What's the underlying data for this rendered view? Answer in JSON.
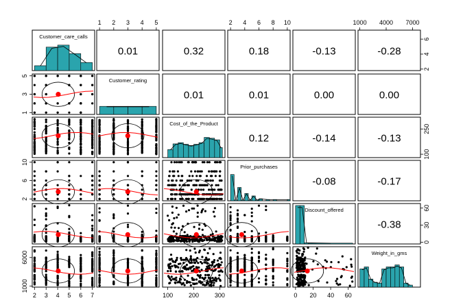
{
  "chart_data": {
    "type": "scatter",
    "matrix_kind": "pairs-panels",
    "variables": [
      "Customer_care_calls",
      "Customer_rating",
      "Cost_of_the_Product",
      "Prior_purchases",
      "Discount_offered",
      "Weight_in_gms"
    ],
    "correlations": [
      {
        "row": 0,
        "col": 1,
        "value": "0.01"
      },
      {
        "row": 0,
        "col": 2,
        "value": "0.32"
      },
      {
        "row": 0,
        "col": 3,
        "value": "0.18"
      },
      {
        "row": 0,
        "col": 4,
        "value": "-0.13"
      },
      {
        "row": 0,
        "col": 5,
        "value": "-0.28"
      },
      {
        "row": 1,
        "col": 2,
        "value": "0.01"
      },
      {
        "row": 1,
        "col": 3,
        "value": "0.01"
      },
      {
        "row": 1,
        "col": 4,
        "value": "0.00"
      },
      {
        "row": 1,
        "col": 5,
        "value": "0.00"
      },
      {
        "row": 2,
        "col": 3,
        "value": "0.12"
      },
      {
        "row": 2,
        "col": 4,
        "value": "-0.14"
      },
      {
        "row": 2,
        "col": 5,
        "value": "-0.13"
      },
      {
        "row": 3,
        "col": 4,
        "value": "-0.08"
      },
      {
        "row": 3,
        "col": 5,
        "value": "-0.17"
      },
      {
        "row": 4,
        "col": 5,
        "value": "-0.38"
      }
    ],
    "ranges": [
      [
        1.8,
        7.2
      ],
      [
        0.8,
        5.2
      ],
      [
        80,
        320
      ],
      [
        1.6,
        10.4
      ],
      [
        -3,
        68
      ],
      [
        800,
        7900
      ]
    ],
    "ticks": {
      "bottom": [
        {
          "col": 0,
          "labels": [
            "2",
            "3",
            "4",
            "5",
            "6",
            "7"
          ],
          "values": [
            2,
            3,
            4,
            5,
            6,
            7
          ]
        },
        {
          "col": 2,
          "labels": [
            "100",
            "200",
            "300"
          ],
          "values": [
            100,
            200,
            300
          ]
        },
        {
          "col": 4,
          "labels": [
            "0",
            "20",
            "40",
            "60"
          ],
          "values": [
            0,
            20,
            40,
            60
          ]
        }
      ],
      "top": [
        {
          "col": 1,
          "labels": [
            "1",
            "2",
            "3",
            "4",
            "5"
          ],
          "values": [
            1,
            2,
            3,
            4,
            5
          ]
        },
        {
          "col": 3,
          "labels": [
            "2",
            "4",
            "6",
            "8",
            "10"
          ],
          "values": [
            2,
            4,
            6,
            8,
            10
          ]
        },
        {
          "col": 5,
          "labels": [
            "1000",
            "4000",
            "7000"
          ],
          "values": [
            1000,
            4000,
            7000
          ]
        }
      ],
      "left": [
        {
          "row": 1,
          "labels": [
            "1",
            "3",
            "5"
          ],
          "values": [
            1,
            3,
            5
          ]
        },
        {
          "row": 3,
          "labels": [
            "2",
            "6",
            "10"
          ],
          "values": [
            2,
            6,
            10
          ]
        },
        {
          "row": 5,
          "labels": [
            "1000",
            "6000"
          ],
          "values": [
            1000,
            6000
          ]
        }
      ],
      "right": [
        {
          "row": 0,
          "labels": [
            "2",
            "4",
            "6"
          ],
          "values": [
            2,
            4,
            6
          ]
        },
        {
          "row": 2,
          "labels": [
            "100",
            "250"
          ],
          "values": [
            100,
            250
          ]
        },
        {
          "row": 4,
          "labels": [
            "0",
            "30",
            "60"
          ],
          "values": [
            0,
            30,
            60
          ]
        }
      ]
    },
    "histograms": [
      {
        "bins": [
          [
            2,
            3,
            0.12
          ],
          [
            3,
            4,
            0.58
          ],
          [
            4,
            5,
            0.63
          ],
          [
            5,
            6,
            0.42
          ],
          [
            6,
            7,
            0.2
          ]
        ]
      },
      {
        "bins": [
          [
            1,
            2,
            0.2
          ],
          [
            2,
            3,
            0.2
          ],
          [
            3,
            4,
            0.2
          ],
          [
            4,
            5,
            0.2
          ]
        ]
      },
      {
        "bins": [
          [
            100,
            120,
            0.2
          ],
          [
            120,
            140,
            0.34
          ],
          [
            140,
            160,
            0.37
          ],
          [
            160,
            180,
            0.33
          ],
          [
            180,
            200,
            0.3
          ],
          [
            200,
            220,
            0.33
          ],
          [
            220,
            240,
            0.37
          ],
          [
            240,
            260,
            0.5
          ],
          [
            260,
            280,
            0.48
          ],
          [
            280,
            300,
            0.44
          ],
          [
            300,
            310,
            0.25
          ]
        ]
      },
      {
        "bins": [
          [
            2,
            2.5,
            0.65
          ],
          [
            2.5,
            3.0,
            0.02
          ],
          [
            3,
            3.5,
            0.33
          ],
          [
            3.5,
            4.0,
            0.02
          ],
          [
            4,
            4.5,
            0.18
          ],
          [
            4.5,
            5.0,
            0.02
          ],
          [
            5,
            5.5,
            0.12
          ],
          [
            5.5,
            6.0,
            0.02
          ],
          [
            6,
            6.5,
            0.05
          ],
          [
            7,
            7.5,
            0.03
          ],
          [
            8,
            8.5,
            0.03
          ],
          [
            10,
            10.4,
            0.03
          ]
        ]
      },
      {
        "bins": [
          [
            0,
            5,
            0.95
          ],
          [
            5,
            10,
            0.95
          ],
          [
            10,
            15,
            0.03
          ],
          [
            15,
            65,
            0.02
          ]
        ]
      },
      {
        "bins": [
          [
            1000,
            1500,
            0.45
          ],
          [
            1500,
            2000,
            0.5
          ],
          [
            2000,
            2500,
            0.2
          ],
          [
            2500,
            3000,
            0.12
          ],
          [
            3000,
            3500,
            0.1
          ],
          [
            3500,
            4000,
            0.45
          ],
          [
            4000,
            4500,
            0.5
          ],
          [
            4500,
            5000,
            0.5
          ],
          [
            5000,
            5500,
            0.55
          ],
          [
            5500,
            6000,
            0.5
          ],
          [
            6000,
            6500,
            0.1
          ],
          [
            6500,
            7000,
            0.05
          ]
        ]
      }
    ],
    "means": [
      4.05,
      2.99,
      210,
      3.57,
      13.4,
      3634
    ],
    "colors": {
      "hist_fill": "#2aa4ad",
      "points": "#000000",
      "center": "#ff0000",
      "fit_line": "#ff0000",
      "ellipse": "#000000"
    },
    "grid": false
  }
}
